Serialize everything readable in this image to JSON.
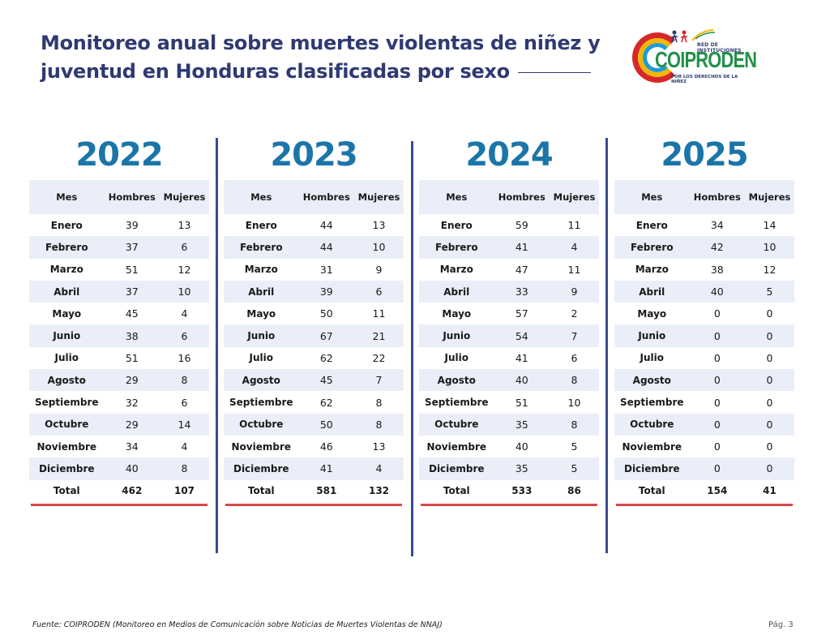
{
  "title": "Monitoreo anual sobre muertes violentas de niñez y juventud en Honduras clasificadas por sexo",
  "logo": {
    "top_text": "RED DE INSTITUCIONES",
    "name": "COIPRODEN",
    "sub_text": "POR LOS DERECHOS DE LA NIÑEZ"
  },
  "headers": {
    "mes": "Mes",
    "hombres": "Hombres",
    "mujeres": "Mujeres"
  },
  "total_label": "Total",
  "colors": {
    "title": "#2f3a72",
    "year": "#1c75a8",
    "row_alt": "#e9eef8",
    "total_rule": "#d94848",
    "divider": "#3a4a93"
  },
  "years": [
    {
      "year": "2022",
      "rows": [
        [
          "Enero",
          "39",
          "13"
        ],
        [
          "Febrero",
          "37",
          "6"
        ],
        [
          "Marzo",
          "51",
          "12"
        ],
        [
          "Abril",
          "37",
          "10"
        ],
        [
          "Mayo",
          "45",
          "4"
        ],
        [
          "Junio",
          "38",
          "6"
        ],
        [
          "Julio",
          "51",
          "16"
        ],
        [
          "Agosto",
          "29",
          "8"
        ],
        [
          "Septiembre",
          "32",
          "6"
        ],
        [
          "Octubre",
          "29",
          "14"
        ],
        [
          "Noviembre",
          "34",
          "4"
        ],
        [
          "Diciembre",
          "40",
          "8"
        ]
      ],
      "total": [
        "462",
        "107"
      ]
    },
    {
      "year": "2023",
      "rows": [
        [
          "Enero",
          "44",
          "13"
        ],
        [
          "Febrero",
          "44",
          "10"
        ],
        [
          "Marzo",
          "31",
          "9"
        ],
        [
          "Abril",
          "39",
          "6"
        ],
        [
          "Mayo",
          "50",
          "11"
        ],
        [
          "Junio",
          "67",
          "21"
        ],
        [
          "Julio",
          "62",
          "22"
        ],
        [
          "Agosto",
          "45",
          "7"
        ],
        [
          "Septiembre",
          "62",
          "8"
        ],
        [
          "Octubre",
          "50",
          "8"
        ],
        [
          "Noviembre",
          "46",
          "13"
        ],
        [
          "Diciembre",
          "41",
          "4"
        ]
      ],
      "total": [
        "581",
        "132"
      ]
    },
    {
      "year": "2024",
      "rows": [
        [
          "Enero",
          "59",
          "11"
        ],
        [
          "Febrero",
          "41",
          "4"
        ],
        [
          "Marzo",
          "47",
          "11"
        ],
        [
          "Abril",
          "33",
          "9"
        ],
        [
          "Mayo",
          "57",
          "2"
        ],
        [
          "Junio",
          "54",
          "7"
        ],
        [
          "Julio",
          "41",
          "6"
        ],
        [
          "Agosto",
          "40",
          "8"
        ],
        [
          "Septiembre",
          "51",
          "10"
        ],
        [
          "Octubre",
          "35",
          "8"
        ],
        [
          "Noviembre",
          "40",
          "5"
        ],
        [
          "Diciembre",
          "35",
          "5"
        ]
      ],
      "total": [
        "533",
        "86"
      ]
    },
    {
      "year": "2025",
      "rows": [
        [
          "Enero",
          "34",
          "14"
        ],
        [
          "Febrero",
          "42",
          "10"
        ],
        [
          "Marzo",
          "38",
          "12"
        ],
        [
          "Abril",
          "40",
          "5"
        ],
        [
          "Mayo",
          "0",
          "0"
        ],
        [
          "Junio",
          "0",
          "0"
        ],
        [
          "Julio",
          "0",
          "0"
        ],
        [
          "Agosto",
          "0",
          "0"
        ],
        [
          "Septiembre",
          "0",
          "0"
        ],
        [
          "Octubre",
          "0",
          "0"
        ],
        [
          "Noviembre",
          "0",
          "0"
        ],
        [
          "Diciembre",
          "0",
          "0"
        ]
      ],
      "total": [
        "154",
        "41"
      ]
    }
  ],
  "footer": "Fuente: COIPRODEN (Monitoreo en Medios de Comunicación sobre Noticias de Muertes Violentas de NNAJ)",
  "page": "Pág. 3"
}
